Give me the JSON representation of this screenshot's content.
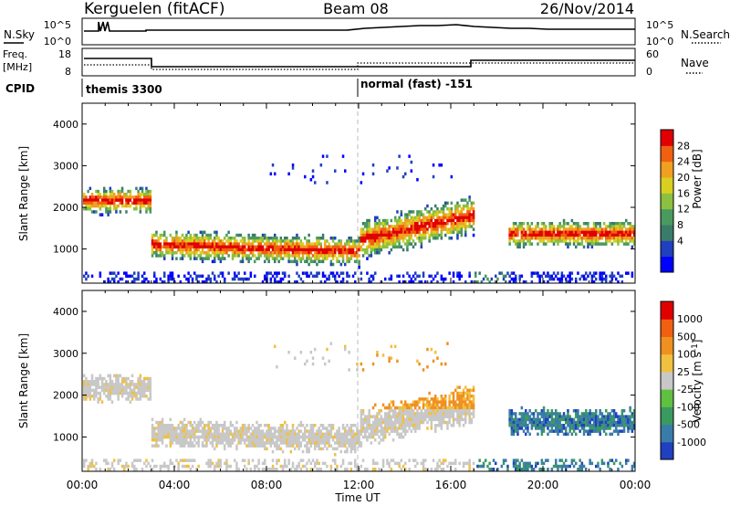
{
  "header": {
    "station": "Kerguelen (fitACF)",
    "beam": "Beam 08",
    "date": "26/Nov/2014"
  },
  "status_panels": {
    "nsky_label": "N.Sky",
    "nsky_ticks": [
      "10^5",
      "10^0"
    ],
    "nsearch_label": "N.Search",
    "nsearch_ticks": [
      "10^5",
      "10^0"
    ],
    "freq_label": "Freq.",
    "freq_unit": "[MHz]",
    "freq_ticks": [
      "18",
      "8"
    ],
    "nave_label": "Nave",
    "nave_ticks": [
      "60",
      "0"
    ],
    "cpid_label": "CPID",
    "cpid_modes": [
      "themis 3300",
      "normal (fast) -151"
    ]
  },
  "chart_data": [
    {
      "type": "heatmap",
      "name": "power-panel",
      "ylabel": "Slant Range [km]",
      "yticks": [
        "4000",
        "3000",
        "2000",
        "1000"
      ],
      "ylim": [
        180,
        4500
      ],
      "xlim": [
        0,
        24
      ],
      "colorbar_label": "Power [dB]",
      "colorbar_ticks": [
        "28",
        "24",
        "20",
        "16",
        "12",
        "8",
        "4"
      ],
      "colorbar_colors": [
        "#0000ff",
        "#2040c0",
        "#3a7c6a",
        "#4a9a60",
        "#8cc040",
        "#d8d020",
        "#f0a020",
        "#f06010",
        "#e00000"
      ],
      "range": [
        0,
        30
      ]
    },
    {
      "type": "heatmap",
      "name": "velocity-panel",
      "ylabel": "Slant Range [km]",
      "yticks": [
        "4000",
        "3000",
        "2000",
        "1000"
      ],
      "ylim": [
        180,
        4500
      ],
      "xlim": [
        0,
        24
      ],
      "colorbar_label": "Velocity [m s^-1]",
      "colorbar_ticks": [
        "1000",
        "500",
        "100",
        "25",
        "-25",
        "-100",
        "-500",
        "-1000"
      ],
      "colorbar_colors": [
        "#2040c0",
        "#3a7ca8",
        "#3a9a60",
        "#60c040",
        "#c8c8c8",
        "#f0c040",
        "#f09020",
        "#f06010",
        "#e00000"
      ]
    }
  ],
  "time_axis": {
    "label": "Time UT",
    "ticks": [
      "00:00",
      "04:00",
      "08:00",
      "12:00",
      "16:00",
      "20:00",
      "00:00"
    ]
  }
}
